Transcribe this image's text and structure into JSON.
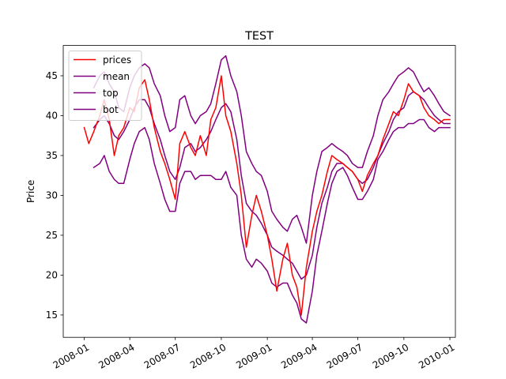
{
  "chart_data": {
    "type": "line",
    "title": "TEST",
    "xlabel": "",
    "ylabel": "Price",
    "xlim": [
      "2007-11-20",
      "2010-01-12"
    ],
    "ylim": [
      12.2,
      48.8
    ],
    "x_ticks": [
      "2008-01",
      "2008-04",
      "2008-07",
      "2008-10",
      "2009-01",
      "2009-04",
      "2009-07",
      "2009-10",
      "2010-01"
    ],
    "x_tick_dates": [
      "2008-01-01",
      "2008-04-01",
      "2008-07-01",
      "2008-10-01",
      "2009-01-01",
      "2009-04-01",
      "2009-07-01",
      "2009-10-01",
      "2010-01-01"
    ],
    "y_ticks": [
      15,
      20,
      25,
      30,
      35,
      40,
      45
    ],
    "grid": false,
    "legend_position": "top-left",
    "series": [
      {
        "name": "prices",
        "color": "#ff0000",
        "x": [
          "2008-01-01",
          "2008-01-10",
          "2008-01-20",
          "2008-02-01",
          "2008-02-10",
          "2008-02-20",
          "2008-03-01",
          "2008-03-10",
          "2008-03-20",
          "2008-04-01",
          "2008-04-10",
          "2008-04-20",
          "2008-05-01",
          "2008-05-10",
          "2008-05-20",
          "2008-06-01",
          "2008-06-10",
          "2008-06-20",
          "2008-07-01",
          "2008-07-10",
          "2008-07-20",
          "2008-08-01",
          "2008-08-10",
          "2008-08-20",
          "2008-09-01",
          "2008-09-10",
          "2008-09-20",
          "2008-10-01",
          "2008-10-10",
          "2008-10-20",
          "2008-11-01",
          "2008-11-10",
          "2008-11-20",
          "2008-12-01",
          "2008-12-10",
          "2008-12-20",
          "2009-01-01",
          "2009-01-10",
          "2009-01-20",
          "2009-02-01",
          "2009-02-10",
          "2009-02-20",
          "2009-03-01",
          "2009-03-10",
          "2009-03-20",
          "2009-04-01",
          "2009-04-10",
          "2009-04-20",
          "2009-05-01",
          "2009-05-10",
          "2009-05-20",
          "2009-06-01",
          "2009-06-10",
          "2009-06-20",
          "2009-07-01",
          "2009-07-10",
          "2009-07-20",
          "2009-08-01",
          "2009-08-10",
          "2009-08-20",
          "2009-09-01",
          "2009-09-10",
          "2009-09-20",
          "2009-10-01",
          "2009-10-10",
          "2009-10-20",
          "2009-11-01",
          "2009-11-10",
          "2009-11-20",
          "2009-12-01",
          "2009-12-10",
          "2009-12-20",
          "2010-01-01"
        ],
        "values": [
          38.5,
          36.5,
          38.0,
          40.0,
          42.0,
          39.5,
          35.0,
          37.5,
          38.5,
          41.0,
          40.5,
          43.5,
          44.5,
          42.0,
          38.5,
          35.5,
          34.0,
          32.0,
          29.5,
          36.5,
          38.0,
          36.0,
          35.0,
          37.5,
          35.0,
          39.5,
          41.0,
          45.0,
          40.0,
          38.0,
          34.0,
          30.0,
          23.5,
          27.5,
          30.0,
          28.0,
          25.0,
          22.0,
          18.0,
          22.0,
          24.0,
          20.0,
          18.5,
          15.0,
          21.0,
          25.5,
          28.0,
          30.0,
          33.0,
          35.0,
          34.5,
          34.0,
          33.5,
          33.0,
          32.0,
          30.5,
          32.5,
          34.0,
          35.0,
          37.0,
          39.0,
          40.5,
          40.0,
          42.0,
          44.0,
          43.0,
          42.5,
          41.0,
          40.0,
          39.5,
          39.0,
          39.5,
          39.5
        ]
      },
      {
        "name": "mean",
        "color": "#800080",
        "x": [
          "2008-01-20",
          "2008-02-01",
          "2008-02-10",
          "2008-02-20",
          "2008-03-01",
          "2008-03-10",
          "2008-03-20",
          "2008-04-01",
          "2008-04-10",
          "2008-04-20",
          "2008-05-01",
          "2008-05-10",
          "2008-05-20",
          "2008-06-01",
          "2008-06-10",
          "2008-06-20",
          "2008-07-01",
          "2008-07-10",
          "2008-07-20",
          "2008-08-01",
          "2008-08-10",
          "2008-08-20",
          "2008-09-01",
          "2008-09-10",
          "2008-09-20",
          "2008-10-01",
          "2008-10-10",
          "2008-10-20",
          "2008-11-01",
          "2008-11-10",
          "2008-11-20",
          "2008-12-01",
          "2008-12-10",
          "2008-12-20",
          "2009-01-01",
          "2009-01-10",
          "2009-01-20",
          "2009-02-01",
          "2009-02-10",
          "2009-02-20",
          "2009-03-01",
          "2009-03-10",
          "2009-03-20",
          "2009-04-01",
          "2009-04-10",
          "2009-04-20",
          "2009-05-01",
          "2009-05-10",
          "2009-05-20",
          "2009-06-01",
          "2009-06-10",
          "2009-06-20",
          "2009-07-01",
          "2009-07-10",
          "2009-07-20",
          "2009-08-01",
          "2009-08-10",
          "2009-08-20",
          "2009-09-01",
          "2009-09-10",
          "2009-09-20",
          "2009-10-01",
          "2009-10-10",
          "2009-10-20",
          "2009-11-01",
          "2009-11-10",
          "2009-11-20",
          "2009-12-01",
          "2009-12-10",
          "2009-12-20",
          "2010-01-01"
        ],
        "values": [
          38.5,
          39.5,
          40.0,
          39.0,
          37.5,
          37.0,
          38.0,
          39.5,
          41.0,
          42.0,
          42.0,
          41.0,
          39.0,
          37.0,
          35.0,
          33.0,
          32.0,
          33.5,
          36.0,
          36.5,
          35.5,
          36.0,
          37.0,
          38.0,
          39.5,
          41.0,
          41.5,
          40.5,
          37.0,
          32.5,
          29.0,
          28.0,
          27.5,
          26.5,
          25.0,
          23.5,
          23.0,
          22.5,
          22.0,
          21.5,
          20.5,
          19.5,
          20.0,
          22.5,
          26.0,
          29.0,
          31.0,
          33.0,
          34.0,
          34.0,
          33.5,
          33.0,
          32.0,
          31.5,
          32.0,
          33.5,
          35.0,
          36.5,
          38.0,
          39.5,
          40.5,
          41.0,
          42.5,
          43.0,
          42.5,
          42.0,
          41.0,
          40.0,
          39.5,
          39.0,
          39.0
        ]
      },
      {
        "name": "top",
        "color": "#800080",
        "x": [
          "2008-01-20",
          "2008-02-01",
          "2008-02-10",
          "2008-02-20",
          "2008-03-01",
          "2008-03-10",
          "2008-03-20",
          "2008-04-01",
          "2008-04-10",
          "2008-04-20",
          "2008-05-01",
          "2008-05-10",
          "2008-05-20",
          "2008-06-01",
          "2008-06-10",
          "2008-06-20",
          "2008-07-01",
          "2008-07-10",
          "2008-07-20",
          "2008-08-01",
          "2008-08-10",
          "2008-08-20",
          "2008-09-01",
          "2008-09-10",
          "2008-09-20",
          "2008-10-01",
          "2008-10-10",
          "2008-10-20",
          "2008-11-01",
          "2008-11-10",
          "2008-11-20",
          "2008-12-01",
          "2008-12-10",
          "2008-12-20",
          "2009-01-01",
          "2009-01-10",
          "2009-01-20",
          "2009-02-01",
          "2009-02-10",
          "2009-02-20",
          "2009-03-01",
          "2009-03-10",
          "2009-03-20",
          "2009-04-01",
          "2009-04-10",
          "2009-04-20",
          "2009-05-01",
          "2009-05-10",
          "2009-05-20",
          "2009-06-01",
          "2009-06-10",
          "2009-06-20",
          "2009-07-01",
          "2009-07-10",
          "2009-07-20",
          "2009-08-01",
          "2009-08-10",
          "2009-08-20",
          "2009-09-01",
          "2009-09-10",
          "2009-09-20",
          "2009-10-01",
          "2009-10-10",
          "2009-10-20",
          "2009-11-01",
          "2009-11-10",
          "2009-11-20",
          "2009-12-01",
          "2009-12-10",
          "2009-12-20",
          "2010-01-01"
        ],
        "values": [
          43.5,
          45.0,
          45.5,
          44.0,
          43.0,
          41.0,
          40.5,
          43.5,
          45.0,
          46.0,
          46.5,
          46.0,
          44.0,
          42.5,
          40.0,
          38.0,
          38.5,
          42.0,
          42.5,
          40.0,
          39.0,
          40.0,
          40.5,
          41.5,
          44.0,
          47.0,
          47.5,
          45.0,
          43.0,
          40.0,
          35.5,
          34.0,
          33.0,
          32.5,
          30.5,
          28.0,
          27.0,
          26.0,
          25.5,
          27.0,
          27.5,
          26.0,
          24.0,
          30.0,
          33.0,
          35.5,
          36.0,
          36.5,
          36.0,
          35.5,
          35.0,
          34.0,
          33.5,
          33.5,
          35.5,
          37.5,
          40.0,
          42.0,
          43.0,
          44.0,
          45.0,
          45.5,
          46.0,
          45.5,
          44.0,
          43.0,
          43.5,
          42.5,
          41.5,
          40.5,
          40.0
        ]
      },
      {
        "name": "bot",
        "color": "#800080",
        "x": [
          "2008-01-20",
          "2008-02-01",
          "2008-02-10",
          "2008-02-20",
          "2008-03-01",
          "2008-03-10",
          "2008-03-20",
          "2008-04-01",
          "2008-04-10",
          "2008-04-20",
          "2008-05-01",
          "2008-05-10",
          "2008-05-20",
          "2008-06-01",
          "2008-06-10",
          "2008-06-20",
          "2008-07-01",
          "2008-07-10",
          "2008-07-20",
          "2008-08-01",
          "2008-08-10",
          "2008-08-20",
          "2008-09-01",
          "2008-09-10",
          "2008-09-20",
          "2008-10-01",
          "2008-10-10",
          "2008-10-20",
          "2008-11-01",
          "2008-11-10",
          "2008-11-20",
          "2008-12-01",
          "2008-12-10",
          "2008-12-20",
          "2009-01-01",
          "2009-01-10",
          "2009-01-20",
          "2009-02-01",
          "2009-02-10",
          "2009-02-20",
          "2009-03-01",
          "2009-03-10",
          "2009-03-20",
          "2009-04-01",
          "2009-04-10",
          "2009-04-20",
          "2009-05-01",
          "2009-05-10",
          "2009-05-20",
          "2009-06-01",
          "2009-06-10",
          "2009-06-20",
          "2009-07-01",
          "2009-07-10",
          "2009-07-20",
          "2009-08-01",
          "2009-08-10",
          "2009-08-20",
          "2009-09-01",
          "2009-09-10",
          "2009-09-20",
          "2009-10-01",
          "2009-10-10",
          "2009-10-20",
          "2009-11-01",
          "2009-11-10",
          "2009-11-20",
          "2009-12-01",
          "2009-12-10",
          "2009-12-20",
          "2010-01-01"
        ],
        "values": [
          33.5,
          34.0,
          35.0,
          33.0,
          32.0,
          31.5,
          31.5,
          34.5,
          36.5,
          38.0,
          38.5,
          37.0,
          34.0,
          31.5,
          29.5,
          28.0,
          28.0,
          31.5,
          33.0,
          33.0,
          32.0,
          32.5,
          32.5,
          32.5,
          32.0,
          32.0,
          33.0,
          31.0,
          30.0,
          25.0,
          22.0,
          21.0,
          22.0,
          21.5,
          20.5,
          19.0,
          18.5,
          19.0,
          19.0,
          17.5,
          16.5,
          14.5,
          14.0,
          18.0,
          22.5,
          25.5,
          29.0,
          31.5,
          33.0,
          33.5,
          32.5,
          31.0,
          29.5,
          29.5,
          30.5,
          32.0,
          34.5,
          35.5,
          37.0,
          38.0,
          38.5,
          38.5,
          39.0,
          39.0,
          39.5,
          39.5,
          38.5,
          38.0,
          38.5,
          38.5,
          38.5
        ]
      }
    ]
  }
}
